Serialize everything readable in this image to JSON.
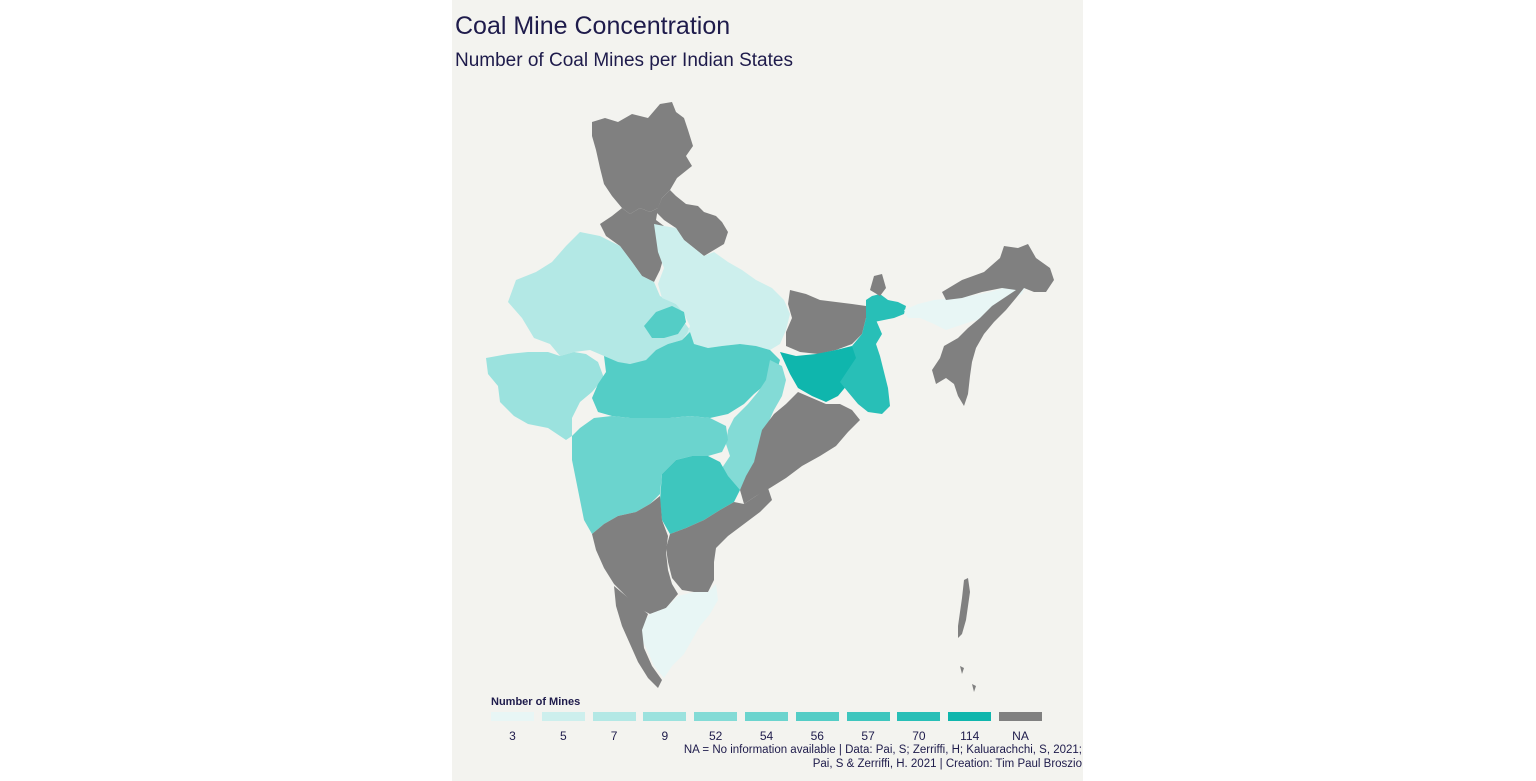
{
  "title": "Coal Mine Concentration",
  "subtitle": "Number of Coal Mines per Indian States",
  "legend": {
    "title": "Number of Mines",
    "items": [
      {
        "label": "3",
        "color": "#e8f6f5"
      },
      {
        "label": "5",
        "color": "#cdefed"
      },
      {
        "label": "7",
        "color": "#b3e8e5"
      },
      {
        "label": "9",
        "color": "#9be2de"
      },
      {
        "label": "52",
        "color": "#83dbd6"
      },
      {
        "label": "54",
        "color": "#6bd4ce"
      },
      {
        "label": "56",
        "color": "#54cdc6"
      },
      {
        "label": "57",
        "color": "#3ec6be"
      },
      {
        "label": "70",
        "color": "#28bfb7"
      },
      {
        "label": "114",
        "color": "#0fb6ad"
      },
      {
        "label": "NA",
        "color": "#808080"
      }
    ]
  },
  "caption": {
    "line1": "NA = No information available | Data: Pai, S; Zerriffi, H; Kaluarachchi, S, 2021;",
    "line2": "Pai, S & Zerriffi, H. 2021 | Creation: Tim Paul Broszio"
  },
  "map_data": {
    "type": "choropleth",
    "regions": [
      {
        "id": "jammu-kashmir",
        "value": "NA"
      },
      {
        "id": "himachal-uttarakhand",
        "value": "NA"
      },
      {
        "id": "punjab-haryana",
        "value": "NA"
      },
      {
        "id": "rajasthan",
        "value": 7
      },
      {
        "id": "uttar-pradesh",
        "value": 5
      },
      {
        "id": "gujarat",
        "value": 9
      },
      {
        "id": "madhya-pradesh",
        "value": 56
      },
      {
        "id": "madhya-pradesh-north",
        "value": 56
      },
      {
        "id": "chhattisgarh",
        "value": 52
      },
      {
        "id": "maharashtra",
        "value": 54
      },
      {
        "id": "telangana",
        "value": 57
      },
      {
        "id": "bihar",
        "value": "NA"
      },
      {
        "id": "jharkhand",
        "value": 114
      },
      {
        "id": "west-bengal",
        "value": 70
      },
      {
        "id": "west-bengal-north",
        "value": 70
      },
      {
        "id": "odisha",
        "value": "NA"
      },
      {
        "id": "andhra-pradesh",
        "value": "NA"
      },
      {
        "id": "karnataka",
        "value": "NA"
      },
      {
        "id": "tamil-nadu",
        "value": 3
      },
      {
        "id": "kerala",
        "value": "NA"
      },
      {
        "id": "assam-meghalaya",
        "value": 3
      },
      {
        "id": "northeast-states",
        "value": "NA"
      },
      {
        "id": "sikkim",
        "value": "NA"
      },
      {
        "id": "andaman-nicobar",
        "value": "NA"
      }
    ]
  }
}
